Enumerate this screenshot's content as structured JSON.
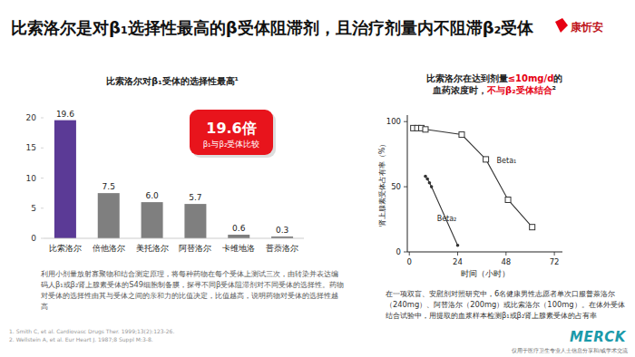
{
  "header": {
    "title": "比索洛尔是对β₁选择性最高的β受体阻滞剂，且治疗剂量内不阻滞β₂受体",
    "brand": "康忻安"
  },
  "chart_data": [
    {
      "type": "bar",
      "title": "比索洛尔对β₁受体的选择性最高¹",
      "categories": [
        "比索洛尔",
        "倍他洛尔",
        "美托洛尔",
        "阿替洛尔",
        "卡维地洛",
        "普萘洛尔"
      ],
      "values": [
        19.6,
        7.5,
        6.0,
        5.7,
        0.6,
        0.3
      ],
      "value_labels": [
        "19.6",
        "7.5",
        "6.0",
        "5.7",
        "0.6",
        "0.3"
      ],
      "colors": [
        "#5b3a96",
        "#7f7f7f",
        "#7f7f7f",
        "#7f7f7f",
        "#7f7f7f",
        "#7f7f7f"
      ],
      "ylim": [
        0,
        20
      ],
      "yticks": [
        0,
        5,
        10,
        15,
        20
      ],
      "grid": false,
      "data_labels": true,
      "annotations": [
        "19.6倍",
        "β₁与β₂受体比较"
      ]
    },
    {
      "type": "line",
      "title": [
        [
          {
            "text": "比索洛尔在达到剂量"
          },
          {
            "text": "≤10mg/d",
            "color": "#e60012"
          },
          {
            "text": "的"
          }
        ],
        [
          {
            "text": "血药浓度时，"
          },
          {
            "text": "不与β₂受体结合",
            "color": "#e60012"
          },
          {
            "text": "²"
          }
        ]
      ],
      "xlabel": "时间（小时）",
      "ylabel": "肾上腺素受体占有率（%）",
      "xlim": [
        -1,
        76
      ],
      "ylim": [
        0,
        105
      ],
      "xticks": [
        0,
        24,
        48,
        72
      ],
      "yticks": [
        0,
        50,
        100
      ],
      "grid": false,
      "series": [
        {
          "name": "Beta₁",
          "color": "#333333",
          "marker": "square",
          "line_style": "solid",
          "x": [
            2,
            4,
            6,
            8,
            26,
            38,
            49,
            61
          ],
          "values": [
            95,
            95,
            95,
            94,
            90,
            71,
            40,
            19
          ]
        },
        {
          "name": "Beta₂",
          "color": "#333333",
          "marker": "dot",
          "line_style": "solid",
          "x": [
            8,
            9,
            10,
            11,
            24
          ],
          "values": [
            58,
            56,
            53,
            50,
            5
          ]
        }
      ]
    }
  ],
  "notes": {
    "left": "利用小剂量放射寡聚物和结合测定原理，将每种药物在每个受体上测试三次，由转染并表达编码人β₁或β₂肾上腺素受体的S49细胞制备膜，探寻不同β受体阻滞剂对不同受体的选择性。药物对受体的选择性由其与受体之间的亲和力的比值决定，比值越高，说明药物对受体的选择性越高",
    "right": "在一项双盲、安慰剂对照研究中，6名健康男性志愿者单次口服普萘洛尔（240mg）、阿替洛尔（200mg）或比索洛尔（100mg）。在体外受体结合试验中，用提取的血浆样本检测β₁或β₂肾上腺素受体的占有率"
  },
  "footnotes": [
    "1. Smith C, et al. Cardiovasc Drugs Ther. 1999;13(2):123-26.",
    "2. Wellstein A, et al. Eur Heart J. 1987;8 Suppl M:3-8."
  ],
  "footer": {
    "logo": "MERCK",
    "disclaimer": "仅用于医疗卫生专业人士信息分享和/或学术交流"
  }
}
